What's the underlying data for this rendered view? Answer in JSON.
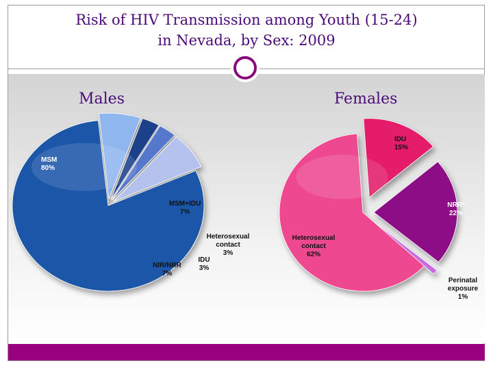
{
  "title": {
    "line1": "Risk of HIV Transmission among Youth (15-24)",
    "line2": "in Nevada, by Sex: 2009"
  },
  "colors": {
    "accent": "#990080",
    "title": "#4b0a7a"
  },
  "chart_data": [
    {
      "type": "pie",
      "title": "Males",
      "slices": [
        {
          "label": "MSM",
          "pct_label": "80%",
          "value": 80,
          "color": "#1f57a8",
          "text_color": "#ffffff"
        },
        {
          "label": "MSM+IDU",
          "pct_label": "7%",
          "value": 7,
          "color": "#8fb6ee",
          "text_color": "#111111"
        },
        {
          "label": "Heterosexual contact",
          "pct_label": "3%",
          "value": 3,
          "color": "#1a3f8a",
          "text_color": "#111111"
        },
        {
          "label": "IDU",
          "pct_label": "3%",
          "value": 3,
          "color": "#5577cc",
          "text_color": "#111111"
        },
        {
          "label": "NIR/NRR",
          "pct_label": "7%",
          "value": 7,
          "color": "#b6c2ee",
          "text_color": "#111111"
        }
      ]
    },
    {
      "type": "pie",
      "title": "Females",
      "slices": [
        {
          "label": "IDU",
          "pct_label": "15%",
          "value": 15,
          "color": "#e41c6a",
          "text_color": "#111111"
        },
        {
          "label": "NRR*",
          "pct_label": "22%",
          "value": 22,
          "color": "#8c0e86",
          "text_color": "#ffffff"
        },
        {
          "label": "Perinatal exposure",
          "pct_label": "1%",
          "value": 1,
          "color": "#c86ae0",
          "text_color": "#111111"
        },
        {
          "label": "Heterosexual contact",
          "pct_label": "62%",
          "value": 62,
          "color": "#ee4a90",
          "text_color": "#111111"
        }
      ]
    }
  ]
}
